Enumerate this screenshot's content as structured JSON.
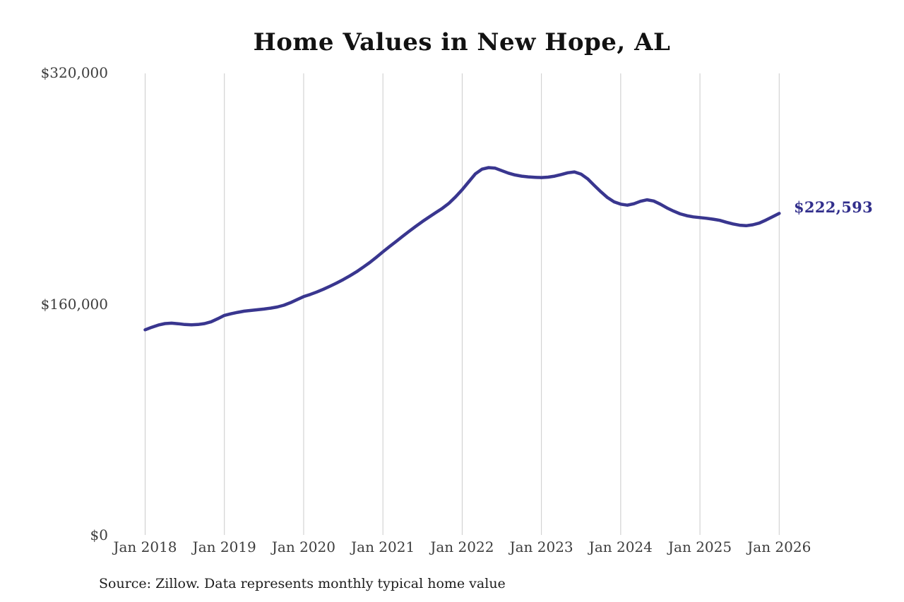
{
  "chart": {
    "title": "Home Values in New Hope, AL",
    "source_note": "Source: Zillow. Data represents monthly typical home value"
  },
  "chart_data": {
    "type": "line",
    "title": "Home Values in New Hope, AL",
    "frequency": "monthly",
    "x_start": "Jan 2018",
    "x_end": "Jan 2026",
    "x_ticks": [
      "Jan 2018",
      "Jan 2019",
      "Jan 2020",
      "Jan 2021",
      "Jan 2022",
      "Jan 2023",
      "Jan 2024",
      "Jan 2025",
      "Jan 2026"
    ],
    "y_ticks": [
      {
        "label": "$320,000",
        "value": 320000
      },
      {
        "label": "$160,000",
        "value": 160000
      },
      {
        "label": "$0",
        "value": 0
      }
    ],
    "ylim": [
      0,
      320000
    ],
    "grid": "vertical-only",
    "legend": "none",
    "series": [
      {
        "name": "Typical home value",
        "values": [
          142000,
          143800,
          145300,
          146300,
          146600,
          146200,
          145700,
          145500,
          145700,
          146300,
          147600,
          149700,
          152000,
          153100,
          154100,
          154900,
          155400,
          155900,
          156400,
          157000,
          157800,
          159000,
          160800,
          162900,
          165000,
          166500,
          168200,
          170100,
          172200,
          174400,
          176800,
          179400,
          182200,
          185300,
          188600,
          192200,
          196000,
          199600,
          203200,
          206800,
          210300,
          213700,
          217000,
          220100,
          223100,
          226100,
          229600,
          234000,
          239000,
          244500,
          250000,
          253200,
          254300,
          253900,
          252200,
          250500,
          249200,
          248400,
          247900,
          247600,
          247400,
          247700,
          248400,
          249500,
          250700,
          251300,
          249800,
          246500,
          242000,
          237600,
          233600,
          230600,
          229000,
          228300,
          229300,
          231000,
          232000,
          231200,
          229000,
          226400,
          224200,
          222300,
          221000,
          220200,
          219700,
          219200,
          218600,
          217800,
          216500,
          215300,
          214400,
          214100,
          214700,
          215900,
          218000,
          220300,
          222593
        ]
      }
    ],
    "annotation": {
      "label": "$222,593",
      "value": 222593,
      "position": "end-of-line"
    },
    "line_color": "#39368f",
    "annotation_color": "#322f8c",
    "gridline_color": "#cbcbcb",
    "tick_label_color": "#3d3d3d"
  }
}
